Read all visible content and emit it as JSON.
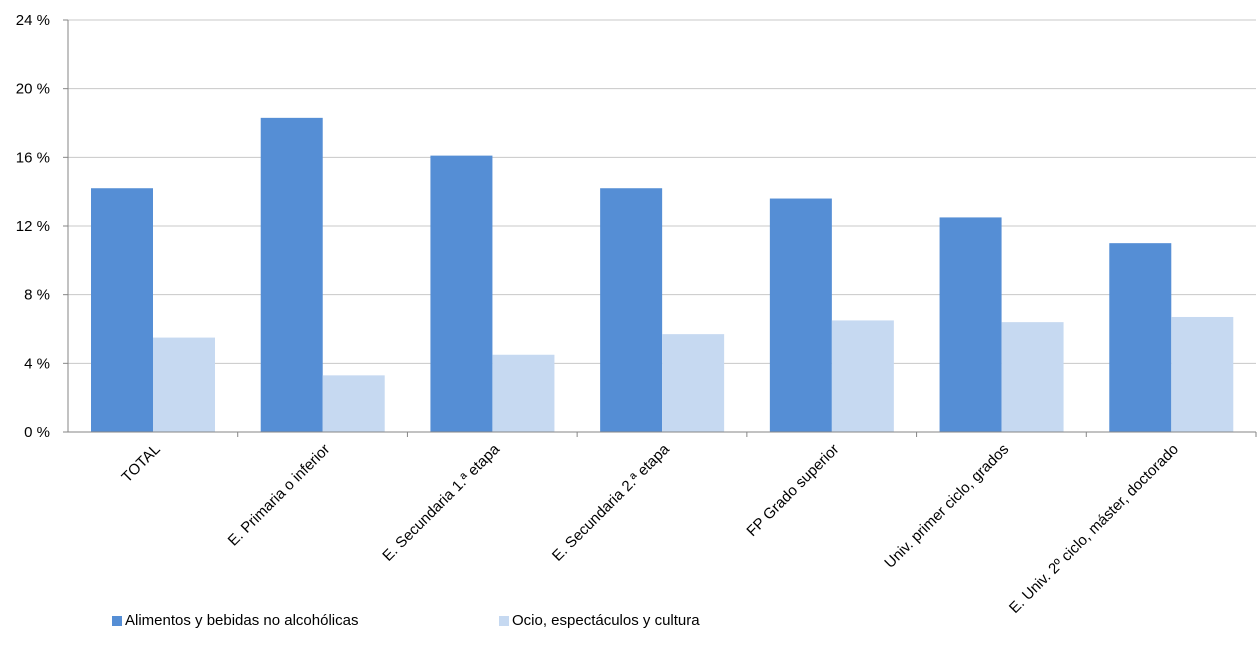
{
  "chart_data": {
    "type": "bar",
    "categories": [
      "TOTAL",
      "E. Primaria o inferior",
      "E. Secundaria 1.ª etapa",
      "E. Secundaria 2.ª etapa",
      "FP Grado superior",
      "Univ. primer ciclo, grados",
      "E. Univ. 2º ciclo, máster, doctorado"
    ],
    "series": [
      {
        "name": "Alimentos y bebidas no alcohólicas",
        "color": "#558ed5",
        "values": [
          14.2,
          18.3,
          16.1,
          14.2,
          13.6,
          12.5,
          11.0
        ]
      },
      {
        "name": "Ocio, espectáculos y cultura",
        "color": "#c6d9f1",
        "values": [
          5.5,
          3.3,
          4.5,
          5.7,
          6.5,
          6.4,
          6.7
        ]
      }
    ],
    "yticks": [
      "0 %",
      "4 %",
      "8 %",
      "12 %",
      "16 %",
      "20 %",
      "24 %"
    ],
    "ylim": [
      0,
      24
    ],
    "grid": true,
    "legend_position": "bottom-left",
    "title": "",
    "xlabel": "",
    "ylabel": ""
  }
}
